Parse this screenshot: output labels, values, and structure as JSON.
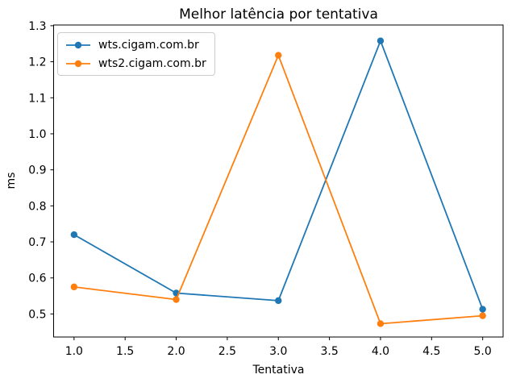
{
  "figure": {
    "background": "#ffffff",
    "spine_color": "#000000",
    "tick_color": "#000000",
    "text_color": "#000000"
  },
  "chart_data": {
    "type": "line",
    "title": "Melhor latência por tentativa",
    "xlabel": "Tentativa",
    "ylabel": "ms",
    "x": [
      1,
      2,
      3,
      4,
      5
    ],
    "series": [
      {
        "name": "wts.cigam.com.br",
        "color": "#1f77b4",
        "marker": "o",
        "values": [
          0.72,
          0.558,
          0.537,
          1.258,
          0.513
        ]
      },
      {
        "name": "wts2.cigam.com.br",
        "color": "#ff7f0e",
        "marker": "o",
        "values": [
          0.575,
          0.54,
          1.218,
          0.473,
          0.495
        ]
      }
    ],
    "xlim": [
      0.8,
      5.2
    ],
    "ylim": [
      0.436,
      1.302
    ],
    "xticks": {
      "values": [
        1.0,
        1.5,
        2.0,
        2.5,
        3.0,
        3.5,
        4.0,
        4.5,
        5.0
      ],
      "labels": [
        "1.0",
        "1.5",
        "2.0",
        "2.5",
        "3.0",
        "3.5",
        "4.0",
        "4.5",
        "5.0"
      ]
    },
    "yticks": {
      "values": [
        0.5,
        0.6,
        0.7,
        0.8,
        0.9,
        1.0,
        1.1,
        1.2,
        1.3
      ],
      "labels": [
        "0.5",
        "0.6",
        "0.7",
        "0.8",
        "0.9",
        "1.0",
        "1.1",
        "1.2",
        "1.3"
      ]
    },
    "grid": false,
    "legend_position": "upper left"
  }
}
